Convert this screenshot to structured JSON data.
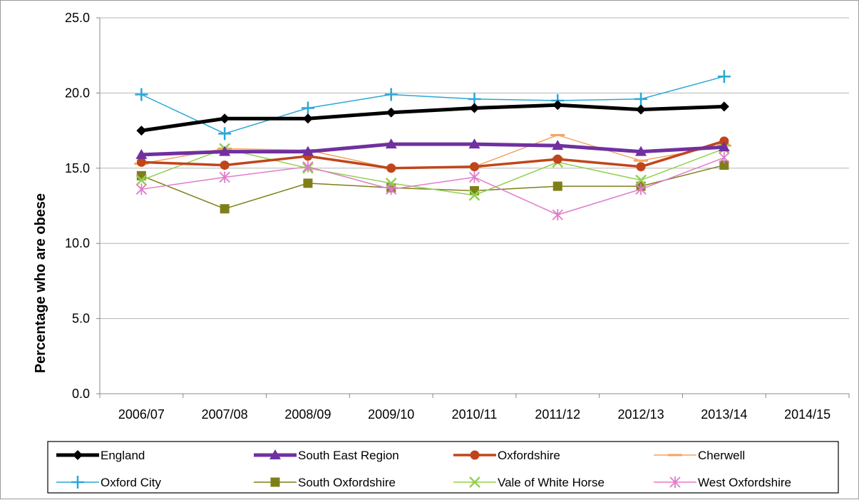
{
  "chart_data": {
    "type": "line",
    "title": "",
    "xlabel": "",
    "ylabel": "Percentage who are obese",
    "ylim": [
      0,
      25
    ],
    "yticks": [
      "0.0",
      "5.0",
      "10.0",
      "15.0",
      "20.0",
      "25.0"
    ],
    "grid": true,
    "legend_position": "bottom",
    "categories": [
      "2006/07",
      "2007/08",
      "2008/09",
      "2009/10",
      "2010/11",
      "2011/12",
      "2012/13",
      "2013/14",
      "2014/15"
    ],
    "series": [
      {
        "name": "England",
        "color": "#000000",
        "marker": "diamond",
        "values": [
          17.5,
          18.3,
          18.3,
          18.7,
          19.0,
          19.2,
          18.9,
          19.1,
          null
        ]
      },
      {
        "name": "South East Region",
        "color": "#7030a0",
        "marker": "triangle",
        "values": [
          15.9,
          16.1,
          16.1,
          16.6,
          16.6,
          16.5,
          16.1,
          16.4,
          null
        ]
      },
      {
        "name": "Oxfordshire",
        "color": "#c0451b",
        "marker": "circle",
        "values": [
          15.4,
          15.2,
          15.8,
          15.0,
          15.1,
          15.6,
          15.1,
          16.8,
          null
        ]
      },
      {
        "name": "Cherwell",
        "color": "#f4a460",
        "marker": "dash",
        "values": [
          15.3,
          16.3,
          16.2,
          15.0,
          15.1,
          17.2,
          15.5,
          16.5,
          null
        ]
      },
      {
        "name": "Oxford City",
        "color": "#2aa7d6",
        "marker": "plus",
        "values": [
          19.9,
          17.3,
          19.0,
          19.9,
          19.6,
          19.5,
          19.6,
          21.1,
          null
        ]
      },
      {
        "name": "South Oxfordshire",
        "color": "#7f7f1a",
        "marker": "square",
        "values": [
          14.5,
          12.3,
          14.0,
          13.7,
          13.5,
          13.8,
          13.8,
          15.2,
          null
        ]
      },
      {
        "name": "Vale of White Horse",
        "color": "#92d050",
        "marker": "x",
        "values": [
          14.2,
          16.3,
          15.0,
          14.0,
          13.2,
          15.4,
          14.2,
          16.3,
          null
        ]
      },
      {
        "name": "West Oxfordshire",
        "color": "#e07cc8",
        "marker": "star",
        "values": [
          13.6,
          14.4,
          15.1,
          13.6,
          14.4,
          11.9,
          13.6,
          15.7,
          null
        ]
      }
    ]
  }
}
